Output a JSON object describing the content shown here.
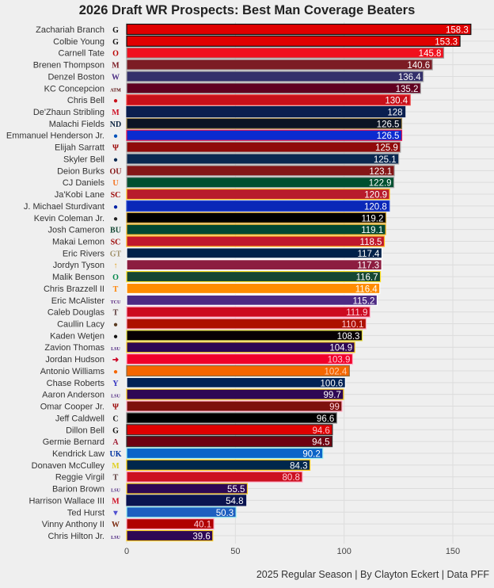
{
  "chart_data": {
    "type": "bar",
    "orientation": "horizontal",
    "title": "2026 Draft WR Prospects: Best Man Coverage Beaters",
    "caption": "2025 Regular Season | By Clayton Eckert | Data PFF",
    "xlabel": "",
    "ylabel": "",
    "xlim": [
      0,
      160
    ],
    "xticks": [
      0,
      50,
      100,
      150
    ],
    "grid": true,
    "bars": [
      {
        "name": "Zachariah Branch",
        "value": 158.3,
        "fill": "#e00000",
        "border": "#111111",
        "text": "#ffffff",
        "logo": "G",
        "logo_color": "#111111",
        "icon": "georgia-logo-icon"
      },
      {
        "name": "Colbie Young",
        "value": 153.3,
        "fill": "#e00000",
        "border": "#111111",
        "text": "#ffffff",
        "logo": "G",
        "logo_color": "#111111",
        "icon": "georgia-logo-icon"
      },
      {
        "name": "Carnell Tate",
        "value": 145.8,
        "fill": "#f0101e",
        "border": "#999999",
        "text": "#ffffff",
        "logo": "O",
        "logo_color": "#bb0000",
        "icon": "ohio-state-logo-icon"
      },
      {
        "name": "Brenen Thompson",
        "value": 140.6,
        "fill": "#7c1c24",
        "border": "#aaaaaa",
        "text": "#ffffff",
        "logo": "M",
        "logo_color": "#7c1c24",
        "icon": "mississippi-state-logo-icon"
      },
      {
        "name": "Denzel Boston",
        "value": 136.4,
        "fill": "#33306b",
        "border": "#aaaaaa",
        "text": "#ffffff",
        "logo": "W",
        "logo_color": "#4b2e83",
        "icon": "washington-logo-icon"
      },
      {
        "name": "KC Concepcion",
        "value": 135.2,
        "fill": "#600020",
        "border": "#aaaaaa",
        "text": "#ffffff",
        "logo": "ATM",
        "logo_color": "#500000",
        "icon": "texas-am-logo-icon"
      },
      {
        "name": "Chris Bell",
        "value": 130.4,
        "fill": "#c8101a",
        "border": "#ee4444",
        "text": "#ffffff",
        "logo": "●",
        "logo_color": "#c8101a",
        "icon": "louisville-logo-icon"
      },
      {
        "name": "De'Zhaun Stribling",
        "value": 128,
        "fill": "#0b1f4f",
        "border": "#0b1f4f",
        "text": "#ffffff",
        "logo": "M",
        "logo_color": "#ce1126",
        "icon": "ole-miss-logo-icon"
      },
      {
        "name": "Malachi Fields",
        "value": 126.5,
        "fill": "#0b1424",
        "border": "#a08850",
        "text": "#ffffff",
        "logo": "ND",
        "logo_color": "#0c2340",
        "icon": "notre-dame-logo-icon"
      },
      {
        "name": "Emmanuel Henderson Jr.",
        "value": 126.5,
        "fill": "#0b2bd0",
        "border": "#e8184a",
        "text": "#ffffff",
        "logo": "●",
        "logo_color": "#0051ba",
        "icon": "kansas-logo-icon"
      },
      {
        "name": "Elijah Sarratt",
        "value": 125.9,
        "fill": "#900a0a",
        "border": "#aaaaaa",
        "text": "#ffffff",
        "logo": "Ψ",
        "logo_color": "#990000",
        "icon": "indiana-logo-icon"
      },
      {
        "name": "Skyler Bell",
        "value": 125.1,
        "fill": "#0a2850",
        "border": "#aaaaaa",
        "text": "#ffffff",
        "logo": "●",
        "logo_color": "#0a2850",
        "icon": "uconn-logo-icon"
      },
      {
        "name": "Deion Burks",
        "value": 123.1,
        "fill": "#841617",
        "border": "#aaaaaa",
        "text": "#ffffff",
        "logo": "OU",
        "logo_color": "#841617",
        "icon": "oklahoma-logo-icon"
      },
      {
        "name": "CJ Daniels",
        "value": 122.9,
        "fill": "#005030",
        "border": "#aaaaaa",
        "text": "#ffffff",
        "logo": "U",
        "logo_color": "#f47321",
        "icon": "miami-logo-icon"
      },
      {
        "name": "Ja'Kobi Lane",
        "value": 120.9,
        "fill": "#b81c2c",
        "border": "#ffc72c",
        "text": "#ffffff",
        "logo": "SC",
        "logo_color": "#990000",
        "icon": "usc-logo-icon"
      },
      {
        "name": "J. Michael Sturdivant",
        "value": 120.8,
        "fill": "#0a27b8",
        "border": "#3050d0",
        "text": "#ffffff",
        "logo": "●",
        "logo_color": "#0021a5",
        "icon": "florida-logo-icon"
      },
      {
        "name": "Kevin Coleman Jr.",
        "value": 119.2,
        "fill": "#000000",
        "border": "#d0a030",
        "text": "#ffffff",
        "logo": "●",
        "logo_color": "#222222",
        "icon": "missouri-logo-icon"
      },
      {
        "name": "Josh Cameron",
        "value": 119.1,
        "fill": "#004834",
        "border": "#ffb81c",
        "text": "#ffffff",
        "logo": "BU",
        "logo_color": "#154734",
        "icon": "baylor-logo-icon"
      },
      {
        "name": "Makai Lemon",
        "value": 118.5,
        "fill": "#c0172c",
        "border": "#ffb81c",
        "text": "#ffffff",
        "logo": "SC",
        "logo_color": "#990000",
        "icon": "usc-logo-icon"
      },
      {
        "name": "Eric Rivers",
        "value": 117.4,
        "fill": "#002048",
        "border": "#ffffff",
        "text": "#ffffff",
        "logo": "GT",
        "logo_color": "#a0916b",
        "icon": "georgia-tech-logo-icon"
      },
      {
        "name": "Jordyn Tyson",
        "value": 117.3,
        "fill": "#8c1d40",
        "border": "#ffffff",
        "text": "#ffffff",
        "logo": "↑",
        "logo_color": "#e0a020",
        "icon": "arizona-state-logo-icon"
      },
      {
        "name": "Malik Benson",
        "value": 116.7,
        "fill": "#154733",
        "border": "#fee123",
        "text": "#ffffff",
        "logo": "O",
        "logo_color": "#00874a",
        "icon": "oregon-logo-icon"
      },
      {
        "name": "Chris Brazzell II",
        "value": 116.4,
        "fill": "#ff8c00",
        "border": "#ffffff",
        "text": "#ffffff",
        "logo": "T",
        "logo_color": "#ff8200",
        "icon": "tennessee-logo-icon"
      },
      {
        "name": "Eric McAlister",
        "value": 115.2,
        "fill": "#4d2a84",
        "border": "#ffffff",
        "text": "#ffffff",
        "logo": "TCU",
        "logo_color": "#4d1979",
        "icon": "tcu-logo-icon"
      },
      {
        "name": "Caleb Douglas",
        "value": 111.9,
        "fill": "#cc0a20",
        "border": "#ffb0c8",
        "text": "#ffd0dc",
        "logo": "T",
        "logo_color": "#553333",
        "icon": "texas-tech-logo-icon"
      },
      {
        "name": "Caullin Lacy",
        "value": 110.1,
        "fill": "#ad1000",
        "border": "#ffb0c8",
        "text": "#ffd0dc",
        "logo": "●",
        "logo_color": "#5a3a20",
        "icon": "louisville-logo-icon"
      },
      {
        "name": "Kaden Wetjen",
        "value": 108.3,
        "fill": "#080004",
        "border": "#e8e040",
        "text": "#ffffff",
        "logo": "●",
        "logo_color": "#111111",
        "icon": "iowa-logo-icon"
      },
      {
        "name": "Zavion Thomas",
        "value": 104.9,
        "fill": "#2e0854",
        "border": "#fdd023",
        "text": "#ffffff",
        "logo": "LSU",
        "logo_color": "#461d7c",
        "icon": "lsu-logo-icon"
      },
      {
        "name": "Jordan Hudson",
        "value": 103.9,
        "fill": "#f0002a",
        "border": "#ffb0c8",
        "text": "#ffd0dc",
        "logo": "➜",
        "logo_color": "#cc0022",
        "icon": "smu-logo-icon"
      },
      {
        "name": "Antonio Williams",
        "value": 102.4,
        "fill": "#f56600",
        "border": "#8a6a40",
        "text": "#ffd0b0",
        "logo": "●",
        "logo_color": "#f56600",
        "icon": "clemson-logo-icon"
      },
      {
        "name": "Chase Roberts",
        "value": 100.6,
        "fill": "#002255",
        "border": "#ffffff",
        "text": "#ffffff",
        "logo": "Y",
        "logo_color": "#3030c0",
        "icon": "byu-logo-icon"
      },
      {
        "name": "Aaron Anderson",
        "value": 99.7,
        "fill": "#2e0854",
        "border": "#fdd023",
        "text": "#ffffff",
        "logo": "LSU",
        "logo_color": "#461d7c",
        "icon": "lsu-logo-icon"
      },
      {
        "name": "Omar Cooper Jr.",
        "value": 99,
        "fill": "#7d110c",
        "border": "#ffb0c8",
        "text": "#ffd0dc",
        "logo": "Ψ",
        "logo_color": "#990000",
        "icon": "indiana-logo-icon"
      },
      {
        "name": "Jeff Caldwell",
        "value": 96.6,
        "fill": "#000000",
        "border": "#888888",
        "text": "#ffffff",
        "logo": "C",
        "logo_color": "#222222",
        "icon": "cincinnati-logo-icon"
      },
      {
        "name": "Dillon Bell",
        "value": 94.6,
        "fill": "#e00000",
        "border": "#333333",
        "text": "#ffc0c8",
        "logo": "G",
        "logo_color": "#111111",
        "icon": "georgia-logo-icon"
      },
      {
        "name": "Germie Bernard",
        "value": 94.5,
        "fill": "#6e0010",
        "border": "#333333",
        "text": "#ffffff",
        "logo": "A",
        "logo_color": "#9e1b32",
        "icon": "alabama-logo-icon"
      },
      {
        "name": "Kendrick Law",
        "value": 90.2,
        "fill": "#0b64c8",
        "border": "#a0f0f0",
        "text": "#ffffff",
        "logo": "UK",
        "logo_color": "#0033a0",
        "icon": "kentucky-logo-icon"
      },
      {
        "name": "Donaven McCulley",
        "value": 84.3,
        "fill": "#00274c",
        "border": "#ffcb05",
        "text": "#ffffff",
        "logo": "M",
        "logo_color": "#e0d020",
        "icon": "michigan-logo-icon"
      },
      {
        "name": "Reggie Virgil",
        "value": 80.8,
        "fill": "#cc1020",
        "border": "#ffb0c8",
        "text": "#ffd0dc",
        "logo": "T",
        "logo_color": "#553333",
        "icon": "texas-tech-logo-icon"
      },
      {
        "name": "Barion Brown",
        "value": 55.5,
        "fill": "#2e0854",
        "border": "#fdd023",
        "text": "#ffffff",
        "logo": "LSU",
        "logo_color": "#461d7c",
        "icon": "lsu-logo-icon"
      },
      {
        "name": "Harrison Wallace III",
        "value": 54.8,
        "fill": "#0b1450",
        "border": "#0b1450",
        "text": "#ffffff",
        "logo": "M",
        "logo_color": "#ce1126",
        "icon": "ole-miss-logo-icon"
      },
      {
        "name": "Ted Hurst",
        "value": 50.3,
        "fill": "#1e5fc0",
        "border": "#a0f0f0",
        "text": "#ffffff",
        "logo": "▼",
        "logo_color": "#5050d0",
        "icon": "georgia-state-logo-icon"
      },
      {
        "name": "Vinny Anthony II",
        "value": 40.1,
        "fill": "#b00000",
        "border": "#ffb0c8",
        "text": "#ffd0dc",
        "logo": "W",
        "logo_color": "#7a2a10",
        "icon": "wisconsin-logo-icon"
      },
      {
        "name": "Chris Hilton Jr.",
        "value": 39.6,
        "fill": "#2e0854",
        "border": "#fdd023",
        "text": "#ffffff",
        "logo": "LSU",
        "logo_color": "#461d7c",
        "icon": "lsu-logo-icon"
      }
    ]
  }
}
